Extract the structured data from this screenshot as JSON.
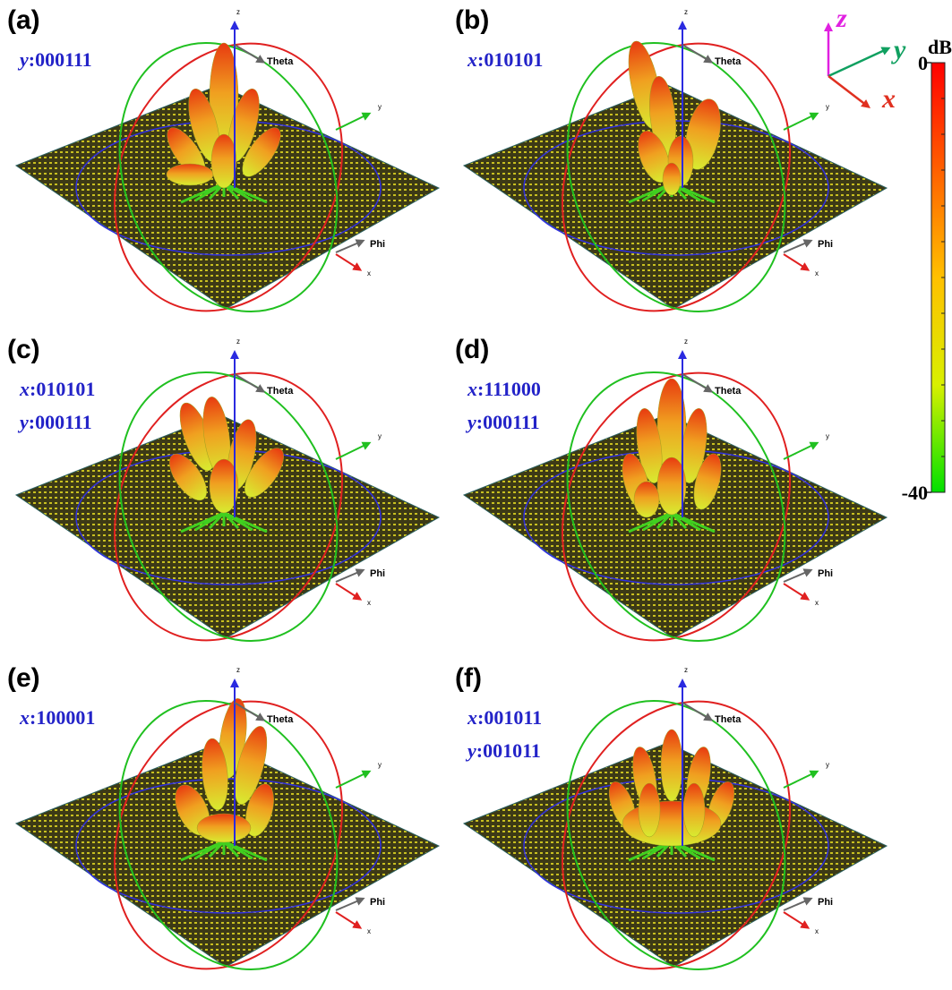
{
  "figure": {
    "panels": [
      {
        "label": "(a)",
        "codes": [
          {
            "axis": "y",
            "bits": ":000111"
          }
        ]
      },
      {
        "label": "(b)",
        "codes": [
          {
            "axis": "x",
            "bits": ":010101"
          }
        ]
      },
      {
        "label": "(c)",
        "codes": [
          {
            "axis": "x",
            "bits": ":010101"
          },
          {
            "axis": "y",
            "bits": ":000111"
          }
        ]
      },
      {
        "label": "(d)",
        "codes": [
          {
            "axis": "x",
            "bits": ":111000"
          },
          {
            "axis": "y",
            "bits": ":000111"
          }
        ]
      },
      {
        "label": "(e)",
        "codes": [
          {
            "axis": "x",
            "bits": ":100001"
          }
        ]
      },
      {
        "label": "(f)",
        "codes": [
          {
            "axis": "x",
            "bits": ":001011"
          },
          {
            "axis": "y",
            "bits": ":001011"
          }
        ]
      }
    ],
    "axis_labels": {
      "z": "z",
      "theta": "Theta",
      "y": "y",
      "phi": "Phi",
      "x": "x"
    },
    "colorbar": {
      "title": "dB",
      "range": [
        -40,
        0
      ],
      "ticks": [
        0,
        -40
      ],
      "colors": [
        "#00e000",
        "#d8f000",
        "#ffc000",
        "#ff6000",
        "#ff0000"
      ]
    },
    "coordinate_legend": {
      "z": "z",
      "y": "y",
      "x": "x"
    }
  }
}
